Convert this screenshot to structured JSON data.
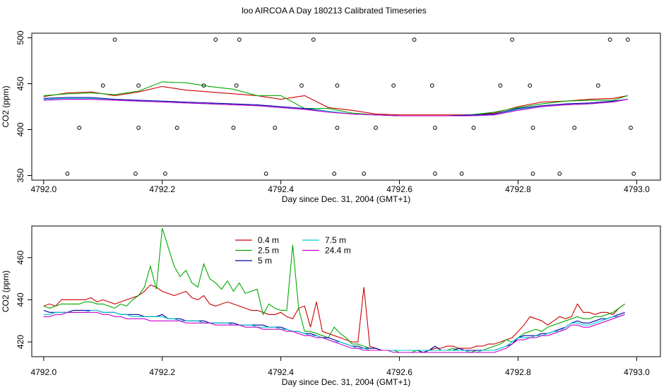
{
  "title": "loo AIRCOA A  Day 180213  Calibrated Timeseries",
  "chart_data": [
    {
      "type": "line",
      "xlabel": "Day since Dec. 31, 2004 (GMT+1)",
      "ylabel": "CO2 (ppm)",
      "xlim": [
        4791.98,
        4793.04
      ],
      "ylim": [
        345,
        505
      ],
      "xticks": [
        "4792.0",
        "4792.2",
        "4792.4",
        "4792.6",
        "4792.8",
        "4793.0"
      ],
      "yticks": [
        "350",
        "400",
        "450",
        "500"
      ],
      "x": [
        4792.0,
        4792.04,
        4792.08,
        4792.12,
        4792.16,
        4792.2,
        4792.24,
        4792.28,
        4792.32,
        4792.36,
        4792.4,
        4792.44,
        4792.48,
        4792.52,
        4792.56,
        4792.6,
        4792.64,
        4792.68,
        4792.72,
        4792.76,
        4792.8,
        4792.84,
        4792.88,
        4792.92,
        4792.96,
        4792.985
      ],
      "series": [
        {
          "name": "0.4 m",
          "color": "#cc0000",
          "values": [
            436,
            440,
            441,
            437,
            441,
            447,
            443,
            441,
            439,
            437,
            433,
            437,
            424,
            421,
            417,
            416,
            416,
            416,
            416,
            418,
            425,
            430,
            431,
            433,
            434,
            437
          ]
        },
        {
          "name": "2.5 m",
          "color": "#00aa00",
          "values": [
            437,
            439,
            440,
            438,
            442,
            452,
            451,
            447,
            444,
            437,
            437,
            423,
            423,
            418,
            416,
            415,
            415,
            415,
            416,
            419,
            424,
            428,
            431,
            432,
            432,
            437
          ]
        },
        {
          "name": "5 m",
          "color": "#0000aa",
          "values": [
            434,
            435,
            435,
            433,
            432,
            431,
            430,
            429,
            428,
            427,
            425,
            423,
            420,
            417,
            416,
            415,
            415,
            415,
            416,
            417,
            423,
            426,
            428,
            429,
            431,
            433
          ]
        },
        {
          "name": "7.5 m",
          "color": "#00cccc",
          "values": [
            433,
            434,
            434,
            432,
            431,
            430,
            429,
            428,
            427,
            426,
            424,
            422,
            420,
            417,
            416,
            415,
            415,
            415,
            415,
            416,
            422,
            425,
            427,
            428,
            430,
            433
          ]
        },
        {
          "name": "24.4 m",
          "color": "#cc00cc",
          "values": [
            432,
            433,
            433,
            432,
            431,
            430,
            429,
            428,
            427,
            426,
            424,
            422,
            419,
            417,
            416,
            415,
            415,
            415,
            415,
            416,
            421,
            425,
            427,
            428,
            430,
            433
          ]
        }
      ],
      "points": {
        "x": [
          4792.04,
          4792.06,
          4792.1,
          4792.12,
          4792.155,
          4792.16,
          4792.16,
          4792.205,
          4792.225,
          4792.27,
          4792.29,
          4792.32,
          4792.325,
          4792.33,
          4792.375,
          4792.39,
          4792.435,
          4792.455,
          4792.49,
          4792.495,
          4792.495,
          4792.54,
          4792.56,
          4792.59,
          4792.625,
          4792.655,
          4792.66,
          4792.66,
          4792.705,
          4792.725,
          4792.77,
          4792.79,
          4792.82,
          4792.825,
          4792.825,
          4792.87,
          4792.895,
          4792.935,
          4792.955,
          4792.985,
          4792.99,
          4792.995
        ],
        "y": [
          352,
          402,
          448,
          498,
          352,
          402,
          448,
          352,
          402,
          448,
          498,
          402,
          448,
          498,
          352,
          402,
          448,
          498,
          352,
          402,
          448,
          352,
          402,
          448,
          498,
          448,
          402,
          352,
          352,
          402,
          448,
          498,
          448,
          402,
          352,
          352,
          402,
          448,
          498,
          498,
          402,
          352
        ]
      }
    },
    {
      "type": "line",
      "xlabel": "Day since Dec. 31, 2004 (GMT+1)",
      "ylabel": "CO2 (ppm)",
      "xlim": [
        4791.98,
        4793.04
      ],
      "ylim": [
        413,
        475
      ],
      "xticks": [
        "4792.0",
        "4792.2",
        "4792.4",
        "4792.6",
        "4792.8",
        "4793.0"
      ],
      "yticks": [
        "420",
        "440",
        "460"
      ],
      "legend": "top-left",
      "x": [
        4792.0,
        4792.01,
        4792.02,
        4792.03,
        4792.04,
        4792.05,
        4792.06,
        4792.07,
        4792.08,
        4792.09,
        4792.1,
        4792.11,
        4792.12,
        4792.13,
        4792.14,
        4792.15,
        4792.16,
        4792.17,
        4792.18,
        4792.19,
        4792.2,
        4792.21,
        4792.22,
        4792.23,
        4792.24,
        4792.25,
        4792.26,
        4792.27,
        4792.28,
        4792.29,
        4792.3,
        4792.31,
        4792.32,
        4792.33,
        4792.34,
        4792.35,
        4792.36,
        4792.37,
        4792.38,
        4792.39,
        4792.4,
        4792.41,
        4792.42,
        4792.43,
        4792.44,
        4792.45,
        4792.46,
        4792.47,
        4792.48,
        4792.49,
        4792.5,
        4792.51,
        4792.52,
        4792.53,
        4792.54,
        4792.55,
        4792.56,
        4792.57,
        4792.58,
        4792.59,
        4792.6,
        4792.61,
        4792.62,
        4792.63,
        4792.64,
        4792.65,
        4792.66,
        4792.67,
        4792.68,
        4792.69,
        4792.7,
        4792.71,
        4792.72,
        4792.73,
        4792.74,
        4792.75,
        4792.76,
        4792.77,
        4792.78,
        4792.79,
        4792.8,
        4792.81,
        4792.82,
        4792.83,
        4792.84,
        4792.85,
        4792.86,
        4792.87,
        4792.88,
        4792.89,
        4792.9,
        4792.91,
        4792.92,
        4792.93,
        4792.94,
        4792.95,
        4792.96,
        4792.97,
        4792.98
      ],
      "series": [
        {
          "name": "0.4 m",
          "color": "#cc0000",
          "values": [
            437,
            438,
            437,
            440,
            440,
            440,
            440,
            440,
            441,
            439,
            440,
            439,
            438,
            439,
            440,
            441,
            442,
            444,
            447,
            446,
            444,
            443,
            442,
            443,
            444,
            441,
            440,
            442,
            438,
            437,
            438,
            439,
            438,
            437,
            436,
            435,
            435,
            434,
            433,
            433,
            434,
            432,
            431,
            436,
            437,
            427,
            439,
            425,
            424,
            423,
            422,
            421,
            420,
            420,
            446,
            418,
            417,
            416,
            416,
            416,
            416,
            416,
            416,
            416,
            416,
            416,
            417,
            417,
            418,
            418,
            417,
            417,
            417,
            418,
            418,
            419,
            419,
            420,
            421,
            422,
            425,
            428,
            432,
            431,
            430,
            428,
            430,
            432,
            431,
            432,
            438,
            434,
            434,
            433,
            434,
            434,
            433,
            436,
            438
          ]
        },
        {
          "name": "2.5 m",
          "color": "#00aa00",
          "values": [
            437,
            436,
            437,
            438,
            438,
            438,
            438,
            439,
            439,
            438,
            438,
            437,
            436,
            438,
            437,
            440,
            442,
            446,
            456,
            445,
            474,
            465,
            456,
            451,
            454,
            448,
            446,
            457,
            450,
            448,
            445,
            449,
            444,
            448,
            443,
            444,
            445,
            433,
            438,
            436,
            435,
            435,
            466,
            436,
            425,
            425,
            424,
            423,
            422,
            427,
            424,
            422,
            419,
            419,
            418,
            417,
            417,
            416,
            416,
            416,
            415,
            415,
            415,
            416,
            415,
            416,
            416,
            416,
            416,
            417,
            416,
            416,
            415,
            416,
            416,
            417,
            418,
            419,
            421,
            420,
            422,
            424,
            425,
            426,
            425,
            427,
            428,
            429,
            430,
            431,
            432,
            431,
            431,
            432,
            432,
            433,
            434,
            436,
            438
          ]
        },
        {
          "name": "5 m",
          "color": "#0000aa",
          "values": [
            435,
            434,
            434,
            434,
            434,
            435,
            435,
            435,
            435,
            435,
            434,
            434,
            434,
            433,
            433,
            433,
            433,
            432,
            432,
            432,
            433,
            431,
            431,
            431,
            430,
            430,
            430,
            430,
            429,
            429,
            429,
            429,
            429,
            428,
            428,
            428,
            428,
            428,
            427,
            427,
            427,
            426,
            425,
            425,
            424,
            424,
            423,
            422,
            422,
            421,
            420,
            419,
            418,
            418,
            417,
            417,
            417,
            416,
            416,
            416,
            416,
            416,
            416,
            416,
            415,
            416,
            418,
            416,
            416,
            416,
            417,
            416,
            416,
            416,
            416,
            416,
            416,
            417,
            418,
            419,
            422,
            423,
            423,
            423,
            424,
            424,
            425,
            426,
            427,
            429,
            430,
            429,
            429,
            430,
            431,
            431,
            432,
            433,
            434
          ]
        },
        {
          "name": "7.5 m",
          "color": "#00cccc",
          "values": [
            433,
            433,
            434,
            434,
            434,
            434,
            434,
            434,
            435,
            435,
            434,
            434,
            434,
            433,
            433,
            432,
            432,
            432,
            432,
            432,
            432,
            431,
            431,
            430,
            430,
            430,
            430,
            429,
            429,
            429,
            429,
            429,
            428,
            428,
            428,
            428,
            427,
            427,
            427,
            427,
            426,
            426,
            425,
            425,
            424,
            423,
            423,
            422,
            421,
            420,
            420,
            419,
            418,
            417,
            417,
            416,
            416,
            416,
            416,
            416,
            416,
            416,
            416,
            416,
            416,
            416,
            416,
            416,
            416,
            416,
            416,
            416,
            415,
            415,
            416,
            416,
            416,
            417,
            418,
            420,
            422,
            422,
            422,
            423,
            423,
            424,
            425,
            425,
            427,
            429,
            429,
            428,
            428,
            429,
            430,
            431,
            432,
            432,
            433
          ]
        },
        {
          "name": "24.4 m",
          "color": "#cc00cc",
          "values": [
            432,
            432,
            433,
            433,
            434,
            434,
            434,
            434,
            434,
            434,
            433,
            433,
            432,
            432,
            431,
            431,
            431,
            431,
            430,
            430,
            430,
            430,
            430,
            430,
            429,
            429,
            429,
            429,
            429,
            428,
            428,
            428,
            428,
            428,
            427,
            427,
            427,
            426,
            426,
            426,
            426,
            425,
            425,
            424,
            423,
            423,
            422,
            422,
            421,
            420,
            419,
            418,
            417,
            417,
            416,
            416,
            416,
            416,
            416,
            415,
            415,
            415,
            415,
            415,
            415,
            415,
            415,
            415,
            415,
            415,
            415,
            415,
            415,
            415,
            415,
            415,
            415,
            416,
            417,
            419,
            421,
            421,
            422,
            422,
            423,
            423,
            424,
            425,
            426,
            428,
            428,
            427,
            427,
            428,
            429,
            430,
            431,
            432,
            433
          ]
        }
      ]
    }
  ]
}
